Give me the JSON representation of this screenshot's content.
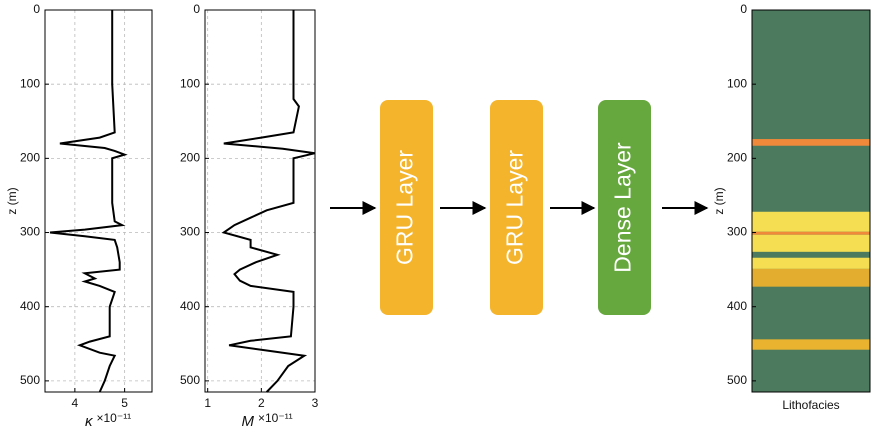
{
  "chart_data": [
    {
      "type": "line",
      "ylabel": "z (m)",
      "xlabel": "κ",
      "scale_label": "×10⁻¹¹",
      "ylim": [
        0,
        515
      ],
      "invert_y": true,
      "yticks": [
        0,
        100,
        200,
        300,
        400,
        500
      ],
      "xlim": [
        3.4,
        5.55
      ],
      "xticks": [
        4,
        5
      ],
      "grid": true,
      "y": [
        0,
        100,
        165,
        172,
        180,
        186,
        190,
        195,
        200,
        220,
        260,
        285,
        290,
        296,
        300,
        305,
        310,
        320,
        340,
        350,
        355,
        362,
        366,
        372,
        380,
        400,
        440,
        447,
        452,
        462,
        466,
        480,
        500,
        515
      ],
      "series": [
        {
          "name": "κ",
          "color": "#000000",
          "values": [
            4.75,
            4.75,
            4.8,
            4.5,
            3.7,
            4.6,
            4.8,
            5.0,
            4.75,
            4.75,
            4.75,
            4.8,
            4.95,
            4.2,
            3.5,
            4.2,
            4.8,
            4.85,
            4.9,
            4.9,
            4.2,
            4.4,
            4.2,
            4.5,
            4.8,
            4.7,
            4.7,
            4.3,
            4.1,
            4.5,
            4.8,
            4.7,
            4.6,
            4.5
          ]
        }
      ]
    },
    {
      "type": "line",
      "xlabel": "M",
      "scale_label": "×10⁻¹¹",
      "ylim": [
        0,
        515
      ],
      "invert_y": true,
      "yticks": [
        0,
        100,
        200,
        300,
        400,
        500
      ],
      "xlim": [
        0.95,
        3.0
      ],
      "xticks": [
        1,
        2,
        3
      ],
      "grid": true,
      "y": [
        0,
        120,
        130,
        165,
        172,
        180,
        187,
        193,
        200,
        220,
        260,
        270,
        280,
        290,
        300,
        310,
        320,
        330,
        340,
        350,
        356,
        365,
        372,
        380,
        400,
        440,
        446,
        452,
        460,
        466,
        480,
        500,
        515
      ],
      "series": [
        {
          "name": "M",
          "color": "#000000",
          "values": [
            2.6,
            2.6,
            2.7,
            2.6,
            2.0,
            1.3,
            2.4,
            3.0,
            2.6,
            2.6,
            2.6,
            2.1,
            1.8,
            1.5,
            1.3,
            1.8,
            1.8,
            2.3,
            1.9,
            1.6,
            1.5,
            1.6,
            1.8,
            2.6,
            2.6,
            2.55,
            1.8,
            1.4,
            2.2,
            2.8,
            2.5,
            2.3,
            2.1
          ]
        }
      ]
    },
    {
      "type": "facies",
      "ylabel": "z (m)",
      "xlabel": "Lithofacies",
      "background": "#4b7a5f",
      "ylim": [
        0,
        515
      ],
      "invert_y": true,
      "yticks": [
        0,
        100,
        200,
        300,
        400,
        500
      ],
      "segments": [
        {
          "top": 174,
          "bottom": 183,
          "color": "#f0893a"
        },
        {
          "top": 272,
          "bottom": 299,
          "color": "#f6de52"
        },
        {
          "top": 299,
          "bottom": 303,
          "color": "#f0893a"
        },
        {
          "top": 303,
          "bottom": 326,
          "color": "#f6de52"
        },
        {
          "top": 334,
          "bottom": 349,
          "color": "#f6de52"
        },
        {
          "top": 349,
          "bottom": 373,
          "color": "#e3ae2f"
        },
        {
          "top": 444,
          "bottom": 458,
          "color": "#e9b22f"
        }
      ]
    }
  ],
  "diagram": {
    "nodes": [
      {
        "label": "GRU Layer",
        "color": "#f4b52d"
      },
      {
        "label": "GRU Layer",
        "color": "#f4b52d"
      },
      {
        "label": "Dense Layer",
        "color": "#66a83d"
      }
    ]
  }
}
